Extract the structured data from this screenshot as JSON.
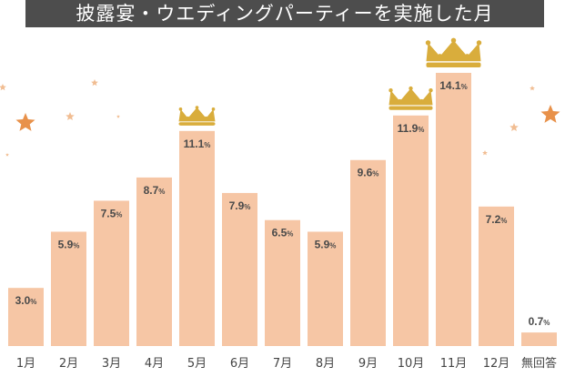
{
  "chart_data": {
    "type": "bar",
    "title": "披露宴・ウエディングパーティーを実施した月",
    "categories": [
      "1月",
      "2月",
      "3月",
      "4月",
      "5月",
      "6月",
      "7月",
      "8月",
      "9月",
      "10月",
      "11月",
      "12月",
      "無回答"
    ],
    "values": [
      3.0,
      5.9,
      7.5,
      8.7,
      11.1,
      7.9,
      6.5,
      5.9,
      9.6,
      11.9,
      14.1,
      7.2,
      0.7
    ],
    "value_suffix": "%",
    "crowned": [
      "5月",
      "10月",
      "11月"
    ],
    "xlabel": "",
    "ylabel": "",
    "ylim": [
      0,
      14.1
    ],
    "grid": false
  },
  "colors": {
    "bar": "#f6c6a5",
    "title_bg": "#4d4d4d",
    "label": "#4a4a4a",
    "crown": "#d9ad3c",
    "star": "#e8914a"
  }
}
